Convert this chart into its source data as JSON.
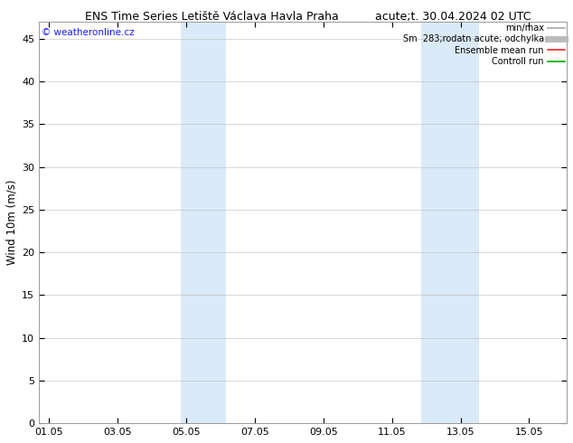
{
  "title_left": "ENS Time Series Letiště Václava Havla Praha",
  "title_right": "acute;t. 30.04.2024 02 UTC",
  "ylabel": "Wind 10m (m/s)",
  "watermark": "© weatheronline.cz",
  "watermark_color": "#1a1aff",
  "xticklabels": [
    "01.05",
    "03.05",
    "05.05",
    "07.05",
    "09.05",
    "11.05",
    "13.05",
    "15.05"
  ],
  "xtick_positions": [
    0,
    2,
    4,
    6,
    8,
    10,
    12,
    14
  ],
  "ylim": [
    0,
    47
  ],
  "yticks": [
    0,
    5,
    10,
    15,
    20,
    25,
    30,
    35,
    40,
    45
  ],
  "xlim": [
    -0.3,
    15.1
  ],
  "bg_color": "#ffffff",
  "plot_bg_color": "#ffffff",
  "shaded_regions": [
    {
      "xstart": 3.85,
      "xend": 5.15
    },
    {
      "xstart": 10.85,
      "xend": 12.55
    }
  ],
  "shaded_color": "#daeaf8",
  "grid_color": "#bbbbbb",
  "legend_entries": [
    {
      "label": "min/max",
      "color": "#aaaaaa",
      "lw": 1.2
    },
    {
      "label": "Sm  283;rodatn acute; odchylka",
      "color": "#bbbbbb",
      "lw": 5
    },
    {
      "label": "Ensemble mean run",
      "color": "#ff2222",
      "lw": 1.2
    },
    {
      "label": "Controll run",
      "color": "#00aa00",
      "lw": 1.2
    }
  ],
  "title_fontsize": 9,
  "tick_fontsize": 8,
  "ylabel_fontsize": 8.5,
  "legend_fontsize": 7,
  "watermark_fontsize": 7.5
}
